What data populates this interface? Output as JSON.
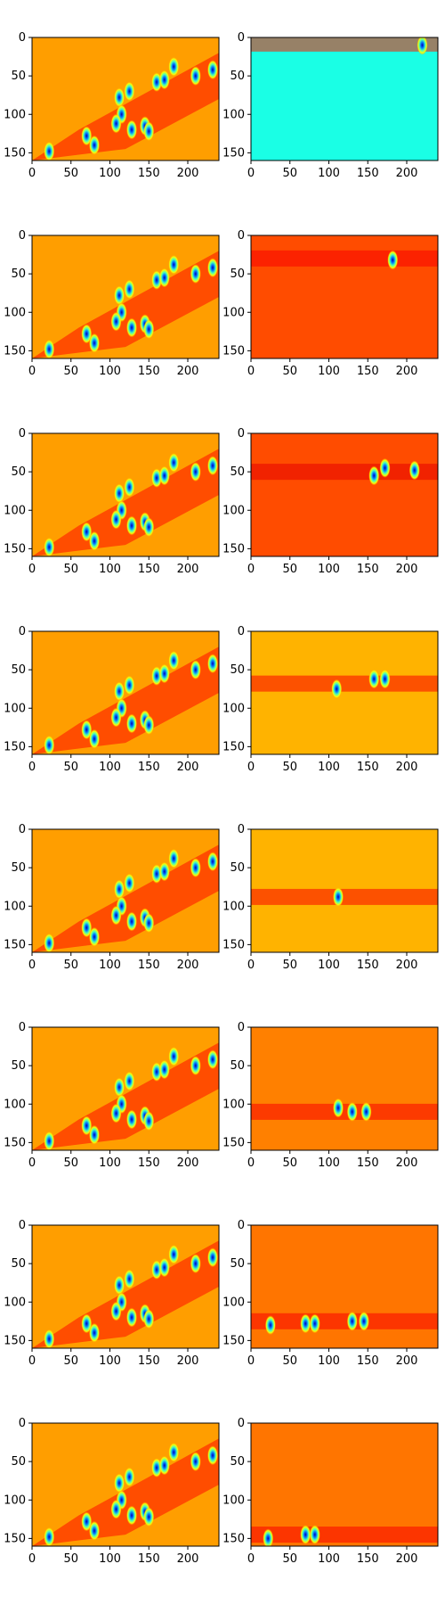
{
  "chart_data": {
    "type": "heatmap",
    "title": "",
    "colormap": "jet",
    "grid": false,
    "rows": 8,
    "cols": 2,
    "xlim": [
      0,
      240
    ],
    "ylim": [
      160,
      0
    ],
    "xticks": [
      0,
      50,
      100,
      150,
      200
    ],
    "yticks": [
      0,
      50,
      100,
      150
    ],
    "left_panel": {
      "background_level": 0.72,
      "band_level": 0.82,
      "blobs": [
        [
          22,
          148
        ],
        [
          70,
          128
        ],
        [
          80,
          140
        ],
        [
          112,
          78
        ],
        [
          115,
          100
        ],
        [
          108,
          112
        ],
        [
          128,
          120
        ],
        [
          145,
          115
        ],
        [
          150,
          122
        ],
        [
          160,
          58
        ],
        [
          170,
          55
        ],
        [
          182,
          38
        ],
        [
          210,
          50
        ],
        [
          232,
          42
        ],
        [
          125,
          70
        ]
      ]
    },
    "right_panels": [
      {
        "band_y": 8,
        "band_level": 0.85,
        "background_level": 0.4,
        "blobs": [
          [
            220,
            10
          ]
        ]
      },
      {
        "band_y": 30,
        "band_level": 0.88,
        "background_level": 0.8,
        "blobs": [
          [
            182,
            32
          ]
        ]
      },
      {
        "band_y": 50,
        "band_level": 0.9,
        "background_level": 0.8,
        "blobs": [
          [
            158,
            55
          ],
          [
            172,
            45
          ],
          [
            210,
            48
          ]
        ]
      },
      {
        "band_y": 68,
        "band_level": 0.88,
        "background_level": 0.7,
        "blobs": [
          [
            110,
            75
          ],
          [
            158,
            62
          ],
          [
            172,
            62
          ]
        ]
      },
      {
        "band_y": 88,
        "band_level": 0.88,
        "background_level": 0.7,
        "blobs": [
          [
            112,
            88
          ]
        ]
      },
      {
        "band_y": 110,
        "band_level": 0.88,
        "background_level": 0.75,
        "blobs": [
          [
            112,
            105
          ],
          [
            130,
            110
          ],
          [
            148,
            110
          ]
        ]
      },
      {
        "band_y": 125,
        "band_level": 0.88,
        "background_level": 0.76,
        "blobs": [
          [
            25,
            130
          ],
          [
            70,
            128
          ],
          [
            82,
            128
          ],
          [
            130,
            125
          ],
          [
            145,
            125
          ]
        ]
      },
      {
        "band_y": 145,
        "band_level": 0.88,
        "background_level": 0.76,
        "blobs": [
          [
            22,
            150
          ],
          [
            70,
            145
          ],
          [
            82,
            145
          ]
        ]
      }
    ]
  }
}
